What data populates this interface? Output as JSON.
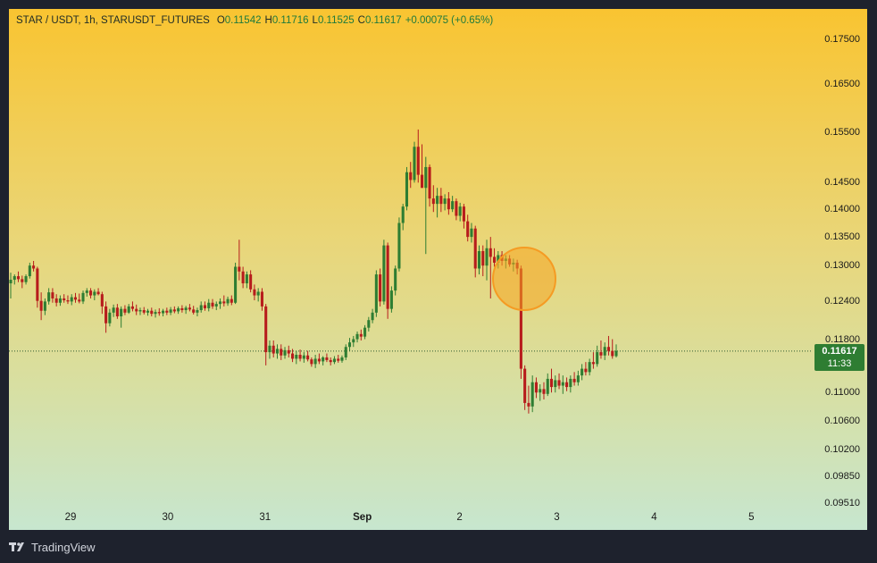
{
  "header": {
    "symbol": "STAR / USDT, 1h, STARUSDT_FUTURES",
    "open_label": "O",
    "open": "0.11542",
    "high_label": "H",
    "high": "0.11716",
    "low_label": "L",
    "low": "0.11525",
    "close_label": "C",
    "close": "0.11617",
    "change": "+0.00075 (+0.65%)"
  },
  "last_price": {
    "price": "0.11617",
    "countdown": "11:33",
    "color": "#2e7d32"
  },
  "footer": {
    "brand": "TradingView"
  },
  "colors": {
    "up": "#2e7d32",
    "down": "#b71c1c",
    "highlight": "#f5a623"
  },
  "chart_data": {
    "type": "candlestick",
    "title": "STAR / USDT, 1h, STARUSDT_FUTURES",
    "y_scale": "log",
    "ylim": [
      0.0951,
      0.178
    ],
    "y_ticks": [
      "0.17500",
      "0.16500",
      "0.15500",
      "0.14500",
      "0.14000",
      "0.13500",
      "0.13000",
      "0.12400",
      "0.11800",
      "0.11000",
      "0.10600",
      "0.10200",
      "0.09850",
      "0.09510"
    ],
    "x_ticks": [
      "29",
      "30",
      "31",
      "Sep",
      "2",
      "3",
      "4",
      "5"
    ],
    "grid": false,
    "ohlc": [
      [
        0.127,
        0.1288,
        0.1245,
        0.1276
      ],
      [
        0.1276,
        0.1285,
        0.1268,
        0.1282
      ],
      [
        0.1282,
        0.129,
        0.1272,
        0.1277
      ],
      [
        0.1277,
        0.1283,
        0.1262,
        0.1272
      ],
      [
        0.1272,
        0.1285,
        0.1268,
        0.1282
      ],
      [
        0.1282,
        0.1305,
        0.1278,
        0.13
      ],
      [
        0.13,
        0.1308,
        0.129,
        0.1295
      ],
      [
        0.1295,
        0.1298,
        0.123,
        0.1241
      ],
      [
        0.1241,
        0.1255,
        0.121,
        0.1225
      ],
      [
        0.1225,
        0.1245,
        0.1218,
        0.124
      ],
      [
        0.124,
        0.1262,
        0.1235,
        0.1255
      ],
      [
        0.1255,
        0.1262,
        0.1238,
        0.1245
      ],
      [
        0.1245,
        0.1252,
        0.1232,
        0.1238
      ],
      [
        0.1238,
        0.125,
        0.1233,
        0.1245
      ],
      [
        0.1245,
        0.1252,
        0.1238,
        0.1242
      ],
      [
        0.1242,
        0.125,
        0.1236,
        0.124
      ],
      [
        0.124,
        0.1252,
        0.1234,
        0.1247
      ],
      [
        0.1247,
        0.1254,
        0.1238,
        0.1243
      ],
      [
        0.1243,
        0.1253,
        0.1237,
        0.124
      ],
      [
        0.124,
        0.1258,
        0.1236,
        0.1254
      ],
      [
        0.1254,
        0.1262,
        0.1248,
        0.1258
      ],
      [
        0.1258,
        0.1262,
        0.1245,
        0.125
      ],
      [
        0.125,
        0.126,
        0.1242,
        0.1256
      ],
      [
        0.1256,
        0.1262,
        0.125,
        0.1252
      ],
      [
        0.1252,
        0.1256,
        0.122,
        0.1232
      ],
      [
        0.1232,
        0.124,
        0.119,
        0.1205
      ],
      [
        0.1205,
        0.1228,
        0.12,
        0.1222
      ],
      [
        0.1222,
        0.1235,
        0.1215,
        0.123
      ],
      [
        0.123,
        0.1236,
        0.1212,
        0.1216
      ],
      [
        0.1216,
        0.1232,
        0.1198,
        0.1228
      ],
      [
        0.1228,
        0.1234,
        0.1218,
        0.1222
      ],
      [
        0.1222,
        0.1236,
        0.122,
        0.1232
      ],
      [
        0.1232,
        0.124,
        0.1224,
        0.1228
      ],
      [
        0.1228,
        0.1235,
        0.1218,
        0.1224
      ],
      [
        0.1224,
        0.123,
        0.1218,
        0.1226
      ],
      [
        0.1226,
        0.1231,
        0.1219,
        0.1222
      ],
      [
        0.1222,
        0.1228,
        0.1217,
        0.1225
      ],
      [
        0.1225,
        0.123,
        0.1216,
        0.122
      ],
      [
        0.122,
        0.1227,
        0.1214,
        0.1223
      ],
      [
        0.1223,
        0.1229,
        0.1217,
        0.1221
      ],
      [
        0.1221,
        0.1228,
        0.1216,
        0.1225
      ],
      [
        0.1225,
        0.123,
        0.1218,
        0.1222
      ],
      [
        0.1222,
        0.1231,
        0.1218,
        0.1227
      ],
      [
        0.1227,
        0.1232,
        0.1221,
        0.1224
      ],
      [
        0.1224,
        0.1232,
        0.122,
        0.1229
      ],
      [
        0.1229,
        0.1234,
        0.1222,
        0.1226
      ],
      [
        0.1226,
        0.1233,
        0.122,
        0.123
      ],
      [
        0.123,
        0.1236,
        0.1224,
        0.1227
      ],
      [
        0.1227,
        0.1233,
        0.1219,
        0.1222
      ],
      [
        0.1222,
        0.123,
        0.1216,
        0.1226
      ],
      [
        0.1226,
        0.124,
        0.1222,
        0.1234
      ],
      [
        0.1234,
        0.124,
        0.1225,
        0.1229
      ],
      [
        0.1229,
        0.1244,
        0.1224,
        0.1238
      ],
      [
        0.1238,
        0.1244,
        0.1228,
        0.1232
      ],
      [
        0.1232,
        0.124,
        0.1226,
        0.1236
      ],
      [
        0.1236,
        0.1245,
        0.1228,
        0.124
      ],
      [
        0.124,
        0.125,
        0.1232,
        0.1237
      ],
      [
        0.1237,
        0.1248,
        0.1233,
        0.1244
      ],
      [
        0.1244,
        0.125,
        0.1234,
        0.1238
      ],
      [
        0.1238,
        0.1305,
        0.1236,
        0.1298
      ],
      [
        0.1298,
        0.1345,
        0.1275,
        0.129
      ],
      [
        0.129,
        0.1298,
        0.1262,
        0.127
      ],
      [
        0.127,
        0.129,
        0.1262,
        0.1285
      ],
      [
        0.1285,
        0.1292,
        0.1255,
        0.126
      ],
      [
        0.126,
        0.1268,
        0.1242,
        0.125
      ],
      [
        0.125,
        0.1262,
        0.124,
        0.1256
      ],
      [
        0.1256,
        0.1262,
        0.1225,
        0.1232
      ],
      [
        0.1232,
        0.1236,
        0.114,
        0.116
      ],
      [
        0.116,
        0.1178,
        0.115,
        0.117
      ],
      [
        0.117,
        0.1178,
        0.1152,
        0.1158
      ],
      [
        0.1158,
        0.1172,
        0.115,
        0.1165
      ],
      [
        0.1165,
        0.1172,
        0.1148,
        0.1155
      ],
      [
        0.1155,
        0.1168,
        0.115,
        0.1163
      ],
      [
        0.1163,
        0.117,
        0.1152,
        0.1158
      ],
      [
        0.1158,
        0.1165,
        0.1145,
        0.115
      ],
      [
        0.115,
        0.1162,
        0.1142,
        0.1156
      ],
      [
        0.1156,
        0.1164,
        0.1146,
        0.115
      ],
      [
        0.115,
        0.116,
        0.1144,
        0.1155
      ],
      [
        0.1155,
        0.1162,
        0.1146,
        0.1149
      ],
      [
        0.1149,
        0.1152,
        0.1138,
        0.1142
      ],
      [
        0.1142,
        0.1156,
        0.1136,
        0.115
      ],
      [
        0.115,
        0.1158,
        0.1142,
        0.1146
      ],
      [
        0.1146,
        0.1154,
        0.114,
        0.1152
      ],
      [
        0.1152,
        0.1158,
        0.1145,
        0.1148
      ],
      [
        0.1148,
        0.1152,
        0.114,
        0.1145
      ],
      [
        0.1145,
        0.1154,
        0.1142,
        0.115
      ],
      [
        0.115,
        0.1156,
        0.1144,
        0.1147
      ],
      [
        0.1147,
        0.1155,
        0.1144,
        0.1152
      ],
      [
        0.1152,
        0.1172,
        0.1148,
        0.1168
      ],
      [
        0.1168,
        0.1182,
        0.1162,
        0.1175
      ],
      [
        0.1175,
        0.1185,
        0.1168,
        0.118
      ],
      [
        0.118,
        0.1192,
        0.1175,
        0.1188
      ],
      [
        0.1188,
        0.1195,
        0.1178,
        0.1184
      ],
      [
        0.1184,
        0.1202,
        0.118,
        0.1198
      ],
      [
        0.1198,
        0.1215,
        0.1192,
        0.121
      ],
      [
        0.121,
        0.1228,
        0.1205,
        0.1222
      ],
      [
        0.1222,
        0.1292,
        0.1215,
        0.1285
      ],
      [
        0.1285,
        0.1295,
        0.1232,
        0.124
      ],
      [
        0.124,
        0.1345,
        0.1235,
        0.1335
      ],
      [
        0.1335,
        0.134,
        0.1212,
        0.1228
      ],
      [
        0.1228,
        0.1265,
        0.1222,
        0.1258
      ],
      [
        0.1258,
        0.13,
        0.125,
        0.1295
      ],
      [
        0.1295,
        0.1385,
        0.129,
        0.1375
      ],
      [
        0.1375,
        0.141,
        0.1362,
        0.1405
      ],
      [
        0.1405,
        0.148,
        0.1398,
        0.147
      ],
      [
        0.147,
        0.149,
        0.144,
        0.1455
      ],
      [
        0.1455,
        0.153,
        0.145,
        0.152
      ],
      [
        0.152,
        0.1555,
        0.145,
        0.1465
      ],
      [
        0.1465,
        0.1525,
        0.144,
        0.144
      ],
      [
        0.144,
        0.15,
        0.132,
        0.148
      ],
      [
        0.148,
        0.1485,
        0.1405,
        0.142
      ],
      [
        0.142,
        0.1445,
        0.1395,
        0.141
      ],
      [
        0.141,
        0.144,
        0.1385,
        0.1425
      ],
      [
        0.1425,
        0.144,
        0.1395,
        0.141
      ],
      [
        0.141,
        0.1428,
        0.1398,
        0.142
      ],
      [
        0.142,
        0.1432,
        0.139,
        0.14
      ],
      [
        0.14,
        0.1425,
        0.1395,
        0.1415
      ],
      [
        0.1415,
        0.142,
        0.138,
        0.1388
      ],
      [
        0.1388,
        0.1412,
        0.1378,
        0.1405
      ],
      [
        0.1405,
        0.141,
        0.1365,
        0.1378
      ],
      [
        0.1378,
        0.139,
        0.1342,
        0.135
      ],
      [
        0.135,
        0.1375,
        0.134,
        0.1365
      ],
      [
        0.1365,
        0.137,
        0.128,
        0.1295
      ],
      [
        0.1295,
        0.1335,
        0.1285,
        0.1325
      ],
      [
        0.1325,
        0.1335,
        0.1282,
        0.13
      ],
      [
        0.13,
        0.1345,
        0.1275,
        0.133
      ],
      [
        0.133,
        0.135,
        0.1245,
        0.1315
      ],
      [
        0.1315,
        0.133,
        0.1298,
        0.1305
      ],
      [
        0.1305,
        0.1325,
        0.1295,
        0.1318
      ],
      [
        0.1318,
        0.1325,
        0.13,
        0.1308
      ],
      [
        0.1308,
        0.1318,
        0.1295,
        0.1312
      ],
      [
        0.1312,
        0.1318,
        0.1298,
        0.1302
      ],
      [
        0.1302,
        0.1312,
        0.129,
        0.1305
      ],
      [
        0.1305,
        0.131,
        0.1285,
        0.1295
      ],
      [
        0.1295,
        0.13,
        0.112,
        0.1135
      ],
      [
        0.1135,
        0.114,
        0.1075,
        0.1085
      ],
      [
        0.1085,
        0.111,
        0.107,
        0.108
      ],
      [
        0.108,
        0.1125,
        0.1072,
        0.1115
      ],
      [
        0.1115,
        0.1122,
        0.1092,
        0.11
      ],
      [
        0.11,
        0.1112,
        0.1088,
        0.1105
      ],
      [
        0.1105,
        0.1115,
        0.109,
        0.1098
      ],
      [
        0.1098,
        0.1128,
        0.1095,
        0.112
      ],
      [
        0.112,
        0.1135,
        0.11,
        0.1108
      ],
      [
        0.1108,
        0.1125,
        0.11,
        0.1118
      ],
      [
        0.1118,
        0.1128,
        0.1105,
        0.111
      ],
      [
        0.111,
        0.1125,
        0.1098,
        0.1115
      ],
      [
        0.1115,
        0.1122,
        0.1102,
        0.1108
      ],
      [
        0.1108,
        0.1125,
        0.11,
        0.112
      ],
      [
        0.112,
        0.113,
        0.111,
        0.1115
      ],
      [
        0.1115,
        0.1132,
        0.111,
        0.1125
      ],
      [
        0.1125,
        0.1142,
        0.1118,
        0.1135
      ],
      [
        0.1135,
        0.1145,
        0.1125,
        0.113
      ],
      [
        0.113,
        0.115,
        0.1125,
        0.1145
      ],
      [
        0.1145,
        0.116,
        0.1135,
        0.1142
      ],
      [
        0.1142,
        0.117,
        0.1138,
        0.116
      ],
      [
        0.116,
        0.1178,
        0.115,
        0.1155
      ],
      [
        0.1155,
        0.1175,
        0.1148,
        0.1168
      ],
      [
        0.1168,
        0.1185,
        0.1155,
        0.1162
      ],
      [
        0.1162,
        0.118,
        0.115,
        0.1154
      ],
      [
        0.1154,
        0.1172,
        0.1152,
        0.1162
      ]
    ]
  }
}
